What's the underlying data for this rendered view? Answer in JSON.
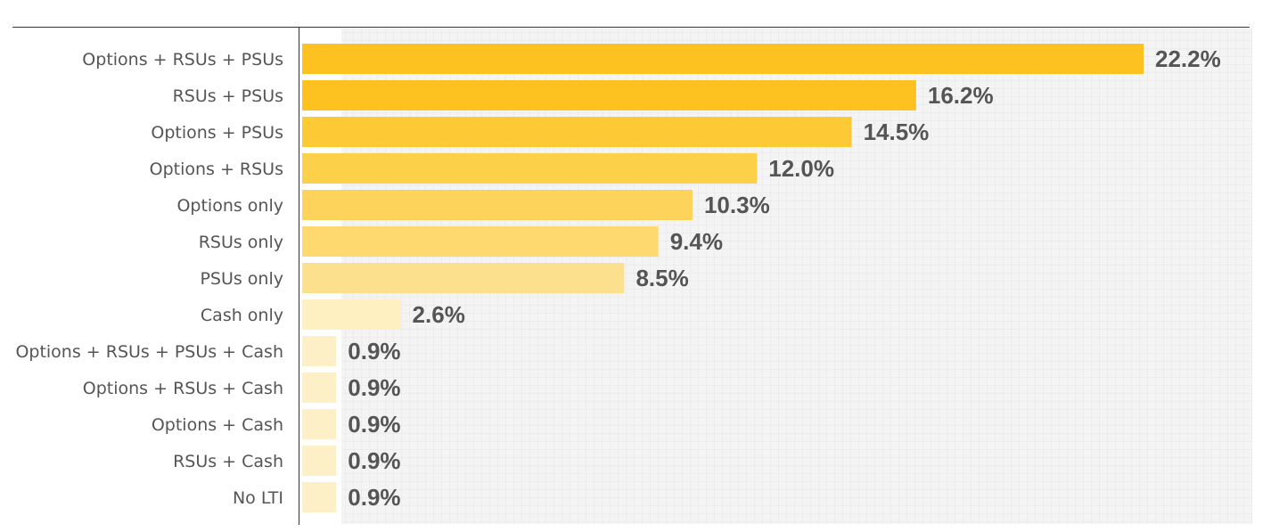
{
  "chart_data": {
    "type": "bar",
    "orientation": "horizontal",
    "title": "",
    "xlabel": "",
    "ylabel": "",
    "xlim": [
      0,
      26.5
    ],
    "grid": true,
    "value_suffix": "%",
    "categories": [
      "Options + RSUs + PSUs",
      "RSUs + PSUs",
      "Options + PSUs",
      "Options + RSUs",
      "Options only",
      "RSUs only",
      "PSUs only",
      "Cash only",
      "Options + RSUs + PSUs + Cash",
      "Options + RSUs + Cash",
      "Options + Cash",
      "RSUs + Cash",
      "No LTI"
    ],
    "values": [
      22.2,
      16.2,
      14.5,
      12.0,
      10.3,
      9.4,
      8.5,
      2.6,
      0.9,
      0.9,
      0.9,
      0.9,
      0.9
    ],
    "value_labels": [
      "22.2%",
      "16.2%",
      "14.5%",
      "12.0%",
      "10.3%",
      "9.4%",
      "8.5%",
      "2.6%",
      "0.9%",
      "0.9%",
      "0.9%",
      "0.9%",
      "0.9%"
    ],
    "bar_colors": [
      "#fdc220",
      "#fdc21f",
      "#fdc934",
      "#fdd04a",
      "#fdd35b",
      "#fdd96f",
      "#fde08e",
      "#fef0c0",
      "#fef0c6",
      "#fef0c6",
      "#fef0c6",
      "#fef0c6",
      "#fef0c6"
    ]
  }
}
